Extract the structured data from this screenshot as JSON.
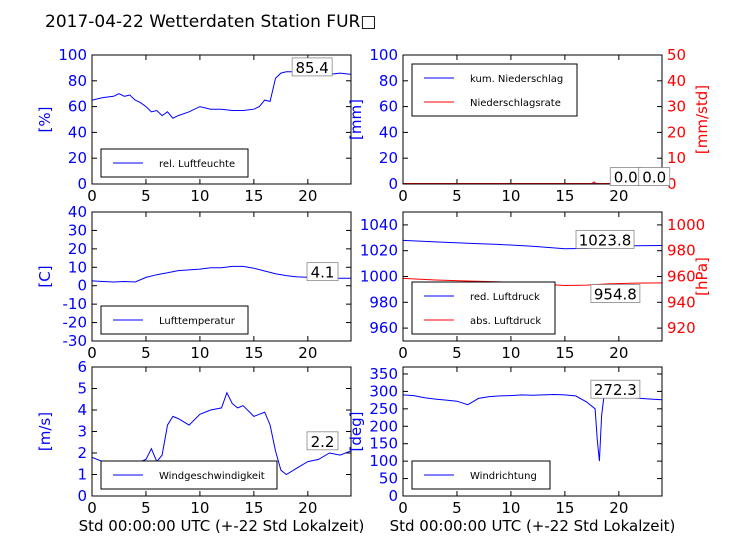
{
  "title": "2017-04-22 Wetterdaten Station FUR□",
  "colors": {
    "primary": "#0000ff",
    "secondary": "#ff0000",
    "axis": "#000000",
    "shade": "#8c8cff"
  },
  "chart_data": [
    {
      "id": "p1",
      "type": "line",
      "xlim": [
        0,
        24
      ],
      "xticks": [
        0,
        5,
        10,
        15,
        20
      ],
      "ylim": [
        0,
        100
      ],
      "yticks": [
        0,
        20,
        40,
        60,
        80,
        100
      ],
      "ylabel": "[%]",
      "xlabel": "",
      "legend_pos": "lower-left",
      "annotation": "85.4",
      "series": [
        {
          "name": "rel. Luftfeuchte",
          "color": "#0000ff",
          "x": [
            0,
            1,
            2,
            2.5,
            3,
            3.5,
            4,
            4.5,
            5,
            5.5,
            6,
            6.5,
            7,
            7.5,
            8,
            9,
            10,
            11,
            12,
            13,
            14,
            15,
            15.5,
            16,
            16.5,
            17,
            17.5,
            18,
            19,
            20,
            21,
            22,
            23,
            24
          ],
          "y": [
            65,
            67,
            68,
            70,
            68,
            69,
            65,
            63,
            60,
            56,
            57,
            53,
            56,
            51,
            53,
            56,
            60,
            58,
            58,
            57,
            57,
            58,
            60,
            65,
            64,
            82,
            86,
            87,
            87,
            87,
            86,
            85,
            86,
            85
          ]
        }
      ]
    },
    {
      "id": "p2",
      "type": "line",
      "xlim": [
        0,
        24
      ],
      "xticks": [
        0,
        5,
        10,
        15,
        20
      ],
      "ylim": [
        0,
        100
      ],
      "yticks": [
        0,
        20,
        40,
        60,
        80,
        100
      ],
      "ylim2": [
        0,
        50
      ],
      "yticks2": [
        0,
        10,
        20,
        30,
        40,
        50
      ],
      "ylabel": "[mm]",
      "ylabel2": "[mm/std]",
      "xlabel": "",
      "legend_pos": "upper-left",
      "annotation": "0.0",
      "annotation2": "0.0",
      "series": [
        {
          "name": "kum. Niederschlag",
          "color": "#0000ff",
          "axis": "left",
          "x": [
            0,
            24
          ],
          "y": [
            0.3,
            0.3
          ]
        },
        {
          "name": "Niederschlagsrate",
          "color": "#ff0000",
          "axis": "right",
          "x": [
            0,
            17.5,
            17.7,
            17.9,
            18.1,
            24
          ],
          "y": [
            0.2,
            0.2,
            0.8,
            0.2,
            0.2,
            0.2
          ]
        }
      ]
    },
    {
      "id": "p3",
      "type": "line",
      "xlim": [
        0,
        24
      ],
      "xticks": [
        0,
        5,
        10,
        15,
        20
      ],
      "ylim": [
        -30,
        40
      ],
      "yticks": [
        -30,
        -20,
        -10,
        0,
        10,
        20,
        30,
        40
      ],
      "ylabel": "[C]",
      "xlabel": "",
      "legend_pos": "lower-left",
      "annotation": "4.1",
      "series": [
        {
          "name": "Lufttemperatur",
          "color": "#0000ff",
          "x": [
            0,
            1,
            2,
            3,
            4,
            5,
            6,
            7,
            8,
            9,
            10,
            11,
            12,
            13,
            14,
            15,
            16,
            17,
            18,
            19,
            20,
            21,
            22,
            23,
            24
          ],
          "y": [
            2.6,
            2.3,
            2.0,
            2.3,
            2.0,
            4.5,
            6.0,
            7.0,
            8.2,
            8.6,
            9.0,
            9.8,
            9.8,
            10.5,
            10.5,
            9.5,
            8.0,
            6.5,
            5.5,
            4.8,
            4.6,
            4.4,
            4.2,
            4.1,
            4.1
          ]
        }
      ]
    },
    {
      "id": "p4",
      "type": "line",
      "xlim": [
        0,
        24
      ],
      "xticks": [
        0,
        5,
        10,
        15,
        20
      ],
      "ylim": [
        950,
        1050
      ],
      "yticks": [
        960,
        980,
        1000,
        1020,
        1040
      ],
      "ylim2": [
        910,
        1010
      ],
      "yticks2": [
        920,
        940,
        960,
        980,
        1000
      ],
      "ylabel": "",
      "ylabel2": "[hPa]",
      "xlabel": "",
      "legend_pos": "lower-left",
      "annotation": "1023.8",
      "annotation2": "954.8",
      "series": [
        {
          "name": "red. Luftdruck",
          "color": "#0000ff",
          "axis": "left",
          "x": [
            0,
            3,
            6,
            9,
            12,
            15,
            17,
            19,
            21,
            24
          ],
          "y": [
            1028,
            1026.8,
            1025.8,
            1024.8,
            1023.5,
            1021.5,
            1021.8,
            1023,
            1023.8,
            1024
          ]
        },
        {
          "name": "abs. Luftdruck",
          "color": "#ff0000",
          "axis": "right",
          "x": [
            0,
            3,
            6,
            9,
            12,
            15,
            17,
            19,
            21,
            24
          ],
          "y": [
            958.5,
            957.3,
            956.5,
            955.8,
            954.6,
            953,
            953.3,
            954.3,
            954.8,
            955
          ]
        }
      ]
    },
    {
      "id": "p5",
      "type": "line",
      "xlim": [
        0,
        24
      ],
      "xticks": [
        0,
        5,
        10,
        15,
        20
      ],
      "ylim": [
        0,
        6
      ],
      "yticks": [
        0,
        1,
        2,
        3,
        4,
        5,
        6
      ],
      "ylabel": "[m/s]",
      "xlabel": "Std 00:00:00 UTC (+-22 Std Lokalzeit)",
      "legend_pos": "lower-left",
      "annotation": "2.2",
      "series": [
        {
          "name": "Windgeschwindigkeit",
          "color": "#0000ff",
          "x": [
            0,
            1,
            2,
            3,
            4,
            5,
            5.5,
            6,
            6.5,
            7,
            7.5,
            8,
            9,
            10,
            11,
            12,
            12.5,
            13,
            13.5,
            14,
            15,
            16,
            16.5,
            17,
            17.5,
            18,
            19,
            20,
            21,
            22,
            23,
            24
          ],
          "y": [
            1.8,
            1.6,
            1.5,
            1.5,
            1.5,
            1.7,
            2.2,
            1.6,
            1.9,
            3.3,
            3.7,
            3.6,
            3.3,
            3.8,
            4.0,
            4.1,
            4.8,
            4.3,
            4.1,
            4.2,
            3.7,
            3.9,
            3.3,
            2.1,
            1.2,
            1.0,
            1.3,
            1.6,
            1.7,
            2.0,
            1.9,
            2.1
          ]
        }
      ]
    },
    {
      "id": "p6",
      "type": "line",
      "xlim": [
        0,
        24
      ],
      "xticks": [
        0,
        5,
        10,
        15,
        20
      ],
      "ylim": [
        0,
        370
      ],
      "yticks": [
        0,
        50,
        100,
        150,
        200,
        250,
        300,
        350
      ],
      "ylabel": "[deg]",
      "xlabel": "Std 00:00:00 UTC (+-22 Std Lokalzeit)",
      "legend_pos": "lower-left",
      "annotation": "272.3",
      "series": [
        {
          "name": "Windrichtung",
          "color": "#0000ff",
          "x": [
            0,
            1,
            2,
            3,
            4,
            5,
            6,
            7,
            8,
            9,
            10,
            11,
            12,
            13,
            14,
            15,
            16,
            17,
            17.8,
            18,
            18.2,
            18.4,
            18.6,
            19,
            20,
            21,
            22,
            23,
            24
          ],
          "y": [
            290,
            288,
            282,
            278,
            275,
            272,
            262,
            280,
            285,
            287,
            288,
            290,
            289,
            290,
            291,
            290,
            287,
            270,
            250,
            160,
            100,
            230,
            280,
            290,
            288,
            282,
            280,
            278,
            276
          ]
        }
      ]
    }
  ]
}
